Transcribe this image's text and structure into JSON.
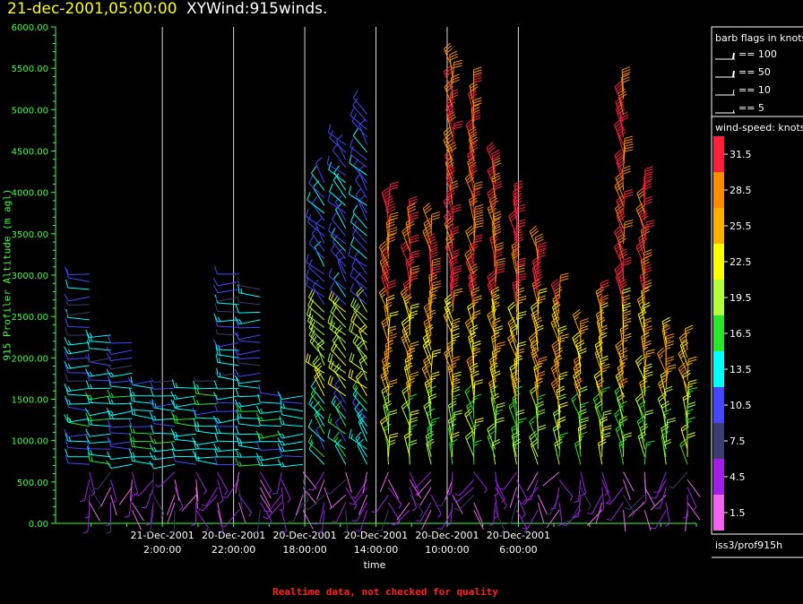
{
  "header": {
    "datetime": "21-dec-2001,05:00:00",
    "product": "XYWind:915winds."
  },
  "footer": {
    "note": "Realtime data, not checked for quality"
  },
  "colors": {
    "axis": "#40ff40",
    "title_datetime": "#ffff00",
    "footer": "#ff2020",
    "background": "#000000"
  },
  "legend_barbs": {
    "title": "barb flags in knots",
    "entries": [
      "== 100",
      "== 50",
      "== 10",
      "== 5"
    ]
  },
  "legend_speed": {
    "title": "wind-speed: knots",
    "levels": [
      "31.5",
      "28.5",
      "25.5",
      "22.5",
      "19.5",
      "16.5",
      "13.5",
      "10.5",
      "7.5",
      "4.5",
      "1.5"
    ],
    "colors": [
      "#ff1e3c",
      "#ff8c00",
      "#ffb000",
      "#ffff00",
      "#b4ff3c",
      "#28e628",
      "#00ffff",
      "#4646ff",
      "#3c3c6e",
      "#a01ee6",
      "#f064f0"
    ]
  },
  "station": "iss3/prof915h",
  "chart_data": {
    "type": "wind-barb",
    "ylabel": "915 Profiler Altitude (m agl)",
    "xlabel": "time",
    "ylim": [
      0,
      6000
    ],
    "yticks": [
      "6000.00",
      "5500.00",
      "5000.00",
      "4500.00",
      "4000.00",
      "3500.00",
      "3000.00",
      "2500.00",
      "2000.00",
      "1500.00",
      "1000.00",
      "500.00",
      "0.00"
    ],
    "xlim_hours_before_end": [
      -5,
      31
    ],
    "xticks": [
      {
        "date": "21-Dec-2001",
        "time": "2:00:00"
      },
      {
        "date": "20-Dec-2001",
        "time": "22:00:00"
      },
      {
        "date": "20-Dec-2001",
        "time": "18:00:00"
      },
      {
        "date": "20-Dec-2001",
        "time": "14:00:00"
      },
      {
        "date": "20-Dec-2001",
        "time": "10:00:00"
      },
      {
        "date": "20-Dec-2001",
        "time": "6:00:00"
      }
    ],
    "grid": "vertical lines at time ticks",
    "time_direction": "reversed (latest on left)",
    "columns": [
      {
        "top": 3100,
        "pattern": "calm-mixed"
      },
      {
        "top": 2300,
        "pattern": "westerly"
      },
      {
        "top": 2200,
        "pattern": "westerly"
      },
      {
        "top": 1800,
        "pattern": "westerly"
      },
      {
        "top": 1750,
        "pattern": "westerly"
      },
      {
        "top": 1700,
        "pattern": "westerly"
      },
      {
        "top": 1750,
        "pattern": "westerly"
      },
      {
        "top": 3100,
        "pattern": "westerly"
      },
      {
        "top": 2900,
        "pattern": "westerly"
      },
      {
        "top": 1600,
        "pattern": "westerly"
      },
      {
        "top": 1550,
        "pattern": "westerly"
      },
      {
        "top": 4200,
        "pattern": "northwest"
      },
      {
        "top": 4600,
        "pattern": "northwest"
      },
      {
        "top": 5000,
        "pattern": "northwest"
      },
      {
        "top": 3900,
        "pattern": "northerly"
      },
      {
        "top": 3700,
        "pattern": "northerly"
      },
      {
        "top": 3600,
        "pattern": "northerly"
      },
      {
        "top": 5500,
        "pattern": "northerly"
      },
      {
        "top": 5300,
        "pattern": "northerly"
      },
      {
        "top": 4300,
        "pattern": "northerly"
      },
      {
        "top": 3900,
        "pattern": "northerly"
      },
      {
        "top": 3300,
        "pattern": "northerly"
      },
      {
        "top": 2800,
        "pattern": "northerly"
      },
      {
        "top": 2300,
        "pattern": "northerly"
      },
      {
        "top": 2700,
        "pattern": "northerly"
      },
      {
        "top": 5300,
        "pattern": "northerly"
      },
      {
        "top": 4100,
        "pattern": "northerly"
      },
      {
        "top": 2200,
        "pattern": "northerly"
      },
      {
        "top": 2100,
        "pattern": "northerly"
      }
    ]
  }
}
